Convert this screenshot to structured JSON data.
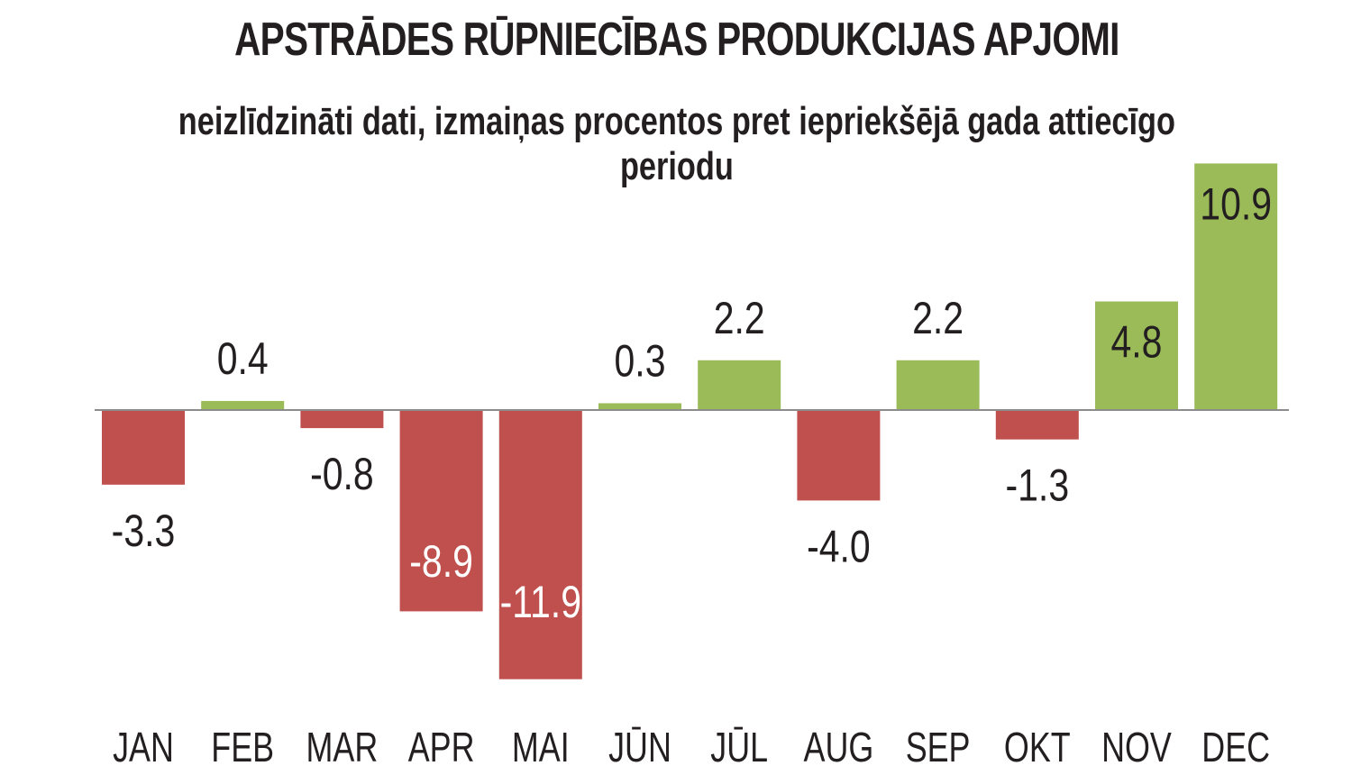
{
  "chart_data": {
    "type": "bar",
    "title": "APSTRĀDES RŪPNIECĪBAS PRODUKCIJAS APJOMI",
    "subtitle": "neizlīdzināti dati, izmaiņas procentos pret iepriekšējā gada attiecīgo periodu",
    "categories": [
      "JAN",
      "FEB",
      "MAR",
      "APR",
      "MAI",
      "JŪN",
      "JŪL",
      "AUG",
      "SEP",
      "OKT",
      "NOV",
      "DEC"
    ],
    "values": [
      -3.3,
      0.4,
      -0.8,
      -8.9,
      -11.9,
      0.3,
      2.2,
      -4.0,
      2.2,
      -1.3,
      4.8,
      10.9
    ],
    "value_labels": [
      "-3.3",
      "0.4",
      "-0.8",
      "-8.9",
      "-11.9",
      "0.3",
      "2.2",
      "-4.0",
      "2.2",
      "-1.3",
      "4.8",
      "10.9"
    ],
    "colors": {
      "positive": "#9bbb59",
      "negative": "#c0504d",
      "axis": "#8c8c8c"
    },
    "xlabel": "",
    "ylabel": "",
    "grid": false
  }
}
